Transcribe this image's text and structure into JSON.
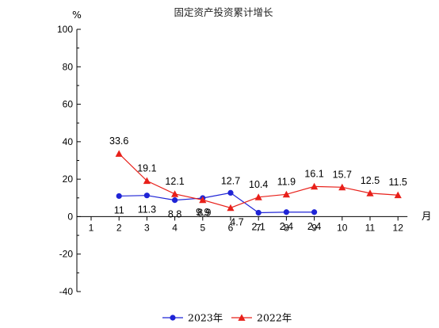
{
  "chart_data": {
    "type": "line",
    "title": "固定资产投资累计增长",
    "ylabel": "%",
    "xlabel": "月",
    "ylim": [
      -40,
      100
    ],
    "yticks": [
      -40,
      -20,
      0,
      20,
      40,
      60,
      80,
      100
    ],
    "categories": [
      "1",
      "2",
      "3",
      "4",
      "5",
      "6",
      "7",
      "8",
      "9",
      "10",
      "11",
      "12"
    ],
    "series": [
      {
        "name": "2023年",
        "color": "#1f24d6",
        "marker": "circle",
        "x": [
          2,
          3,
          4,
          5,
          6,
          7,
          8,
          9
        ],
        "values": [
          11,
          11.3,
          8.8,
          9.9,
          12.7,
          2.1,
          2.4,
          2.4
        ],
        "labels": [
          "11",
          "11.3",
          "8.8",
          "9.9",
          "12.7",
          "2.1",
          "2.4",
          "2.4"
        ]
      },
      {
        "name": "2022年",
        "color": "#e8201a",
        "marker": "triangle",
        "x": [
          2,
          3,
          4,
          5,
          6,
          7,
          8,
          9,
          10,
          11,
          12
        ],
        "values": [
          33.6,
          19.1,
          12.1,
          8.9,
          4.7,
          10.4,
          11.9,
          16.1,
          15.7,
          12.5,
          11.5
        ],
        "labels": [
          "33.6",
          "19.1",
          "12.1",
          "8.9",
          "4.7",
          "10.4",
          "11.9",
          "16.1",
          "15.7",
          "12.5",
          "11.5"
        ]
      }
    ],
    "grid": false,
    "legend": "bottom"
  }
}
